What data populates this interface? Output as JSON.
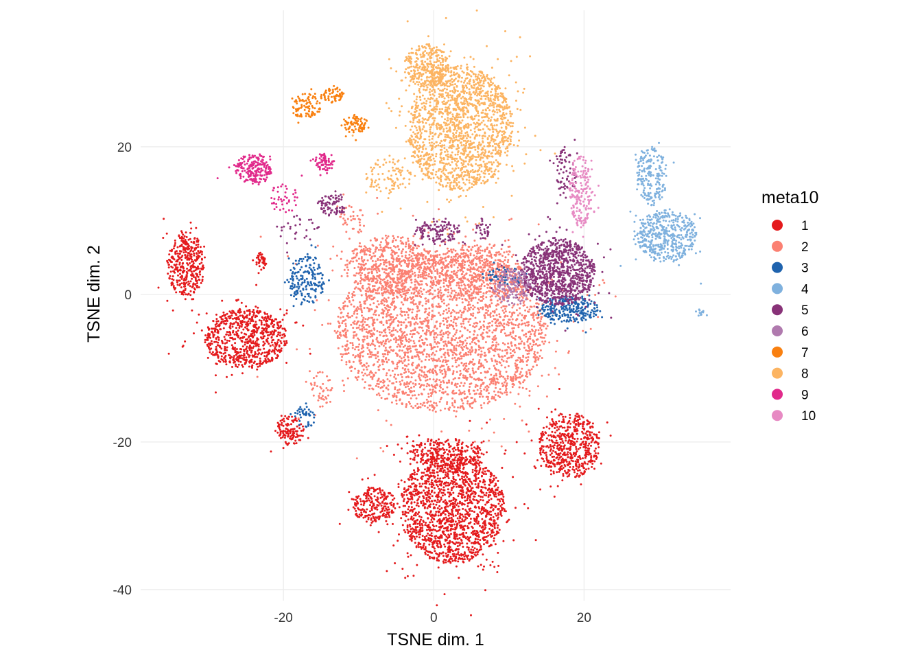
{
  "chart_data": {
    "type": "scatter",
    "title": "",
    "xlabel": "TSNE dim. 1",
    "ylabel": "TSNE dim. 2",
    "xlim": [
      -39,
      39.5
    ],
    "ylim": [
      -41.5,
      38.5
    ],
    "xticks": [
      -20,
      0,
      20
    ],
    "xtick_labels": [
      "-20",
      "0",
      "20"
    ],
    "yticks": [
      -40,
      -20,
      0,
      20
    ],
    "ytick_labels": [
      "-40",
      "-20",
      "0",
      "20"
    ],
    "grid": true,
    "legend": {
      "title": "meta10",
      "position": "right"
    },
    "series": [
      {
        "name": "1",
        "color": "#E41A1C",
        "clusters": [
          {
            "cx": 2.5,
            "cy": -29,
            "rx": 7,
            "ry": 7.5,
            "n": 1600
          },
          {
            "cx": 1.5,
            "cy": -21.5,
            "rx": 5,
            "ry": 2,
            "n": 250
          },
          {
            "cx": 18,
            "cy": -20.5,
            "rx": 4,
            "ry": 4.5,
            "n": 550
          },
          {
            "cx": -8,
            "cy": -28.5,
            "rx": 2.8,
            "ry": 2.5,
            "n": 220
          },
          {
            "cx": -25,
            "cy": -6,
            "rx": 5.5,
            "ry": 4,
            "n": 750
          },
          {
            "cx": -33,
            "cy": 4,
            "rx": 2.5,
            "ry": 4.5,
            "n": 380
          },
          {
            "cx": -19,
            "cy": -18.5,
            "rx": 1.8,
            "ry": 2,
            "n": 120
          },
          {
            "cx": -23,
            "cy": 4.5,
            "rx": 0.8,
            "ry": 1.2,
            "n": 40
          }
        ]
      },
      {
        "name": "2",
        "color": "#FB8072",
        "clusters": [
          {
            "cx": 1,
            "cy": -5,
            "rx": 14,
            "ry": 11,
            "n": 3000
          },
          {
            "cx": -6,
            "cy": 4,
            "rx": 6,
            "ry": 4,
            "n": 500
          },
          {
            "cx": 6,
            "cy": 3,
            "rx": 6,
            "ry": 4,
            "n": 400
          },
          {
            "cx": -15,
            "cy": -13,
            "rx": 1.5,
            "ry": 2.5,
            "n": 40
          },
          {
            "cx": -11,
            "cy": 10,
            "rx": 2,
            "ry": 2,
            "n": 40
          }
        ]
      },
      {
        "name": "3",
        "color": "#1F63AE",
        "clusters": [
          {
            "cx": -17,
            "cy": 2,
            "rx": 2.5,
            "ry": 3.5,
            "n": 180
          },
          {
            "cx": 18,
            "cy": -2,
            "rx": 4,
            "ry": 1.8,
            "n": 260
          },
          {
            "cx": -17,
            "cy": -16.5,
            "rx": 1.5,
            "ry": 1.5,
            "n": 45
          },
          {
            "cx": 10,
            "cy": 2.5,
            "rx": 3,
            "ry": 1.2,
            "n": 60
          }
        ]
      },
      {
        "name": "4",
        "color": "#7FB1DE",
        "clusters": [
          {
            "cx": 31,
            "cy": 8,
            "rx": 4,
            "ry": 3.5,
            "n": 450
          },
          {
            "cx": 29,
            "cy": 16,
            "rx": 2,
            "ry": 4,
            "n": 200
          },
          {
            "cx": 35.5,
            "cy": -2.5,
            "rx": 0.5,
            "ry": 0.5,
            "n": 12
          }
        ]
      },
      {
        "name": "5",
        "color": "#883278",
        "clusters": [
          {
            "cx": 16.5,
            "cy": 3,
            "rx": 5,
            "ry": 4.5,
            "n": 950
          },
          {
            "cx": 0.5,
            "cy": 8.5,
            "rx": 3,
            "ry": 1.5,
            "n": 130
          },
          {
            "cx": -13.5,
            "cy": 12,
            "rx": 2,
            "ry": 1.5,
            "n": 80
          },
          {
            "cx": 17.5,
            "cy": 16.5,
            "rx": 1.5,
            "ry": 3.5,
            "n": 70
          },
          {
            "cx": -18,
            "cy": 9,
            "rx": 3,
            "ry": 2,
            "n": 30
          },
          {
            "cx": 6.5,
            "cy": 9,
            "rx": 1,
            "ry": 1.5,
            "n": 30
          }
        ]
      },
      {
        "name": "6",
        "color": "#B07AAE",
        "clusters": [
          {
            "cx": 10.5,
            "cy": 1,
            "rx": 2.5,
            "ry": 2.5,
            "n": 160
          }
        ]
      },
      {
        "name": "7",
        "color": "#F98010",
        "clusters": [
          {
            "cx": -17,
            "cy": 25.5,
            "rx": 2,
            "ry": 1.7,
            "n": 90
          },
          {
            "cx": -13.5,
            "cy": 27,
            "rx": 1.5,
            "ry": 1,
            "n": 60
          },
          {
            "cx": -10.5,
            "cy": 23,
            "rx": 1.8,
            "ry": 1.2,
            "n": 80
          }
        ]
      },
      {
        "name": "8",
        "color": "#FCB462",
        "clusters": [
          {
            "cx": 3.5,
            "cy": 22.5,
            "rx": 7,
            "ry": 8.5,
            "n": 1700
          },
          {
            "cx": -1,
            "cy": 31,
            "rx": 3,
            "ry": 3,
            "n": 300
          },
          {
            "cx": -6,
            "cy": 16,
            "rx": 3,
            "ry": 2.5,
            "n": 90
          }
        ]
      },
      {
        "name": "9",
        "color": "#E12A8B",
        "clusters": [
          {
            "cx": -24,
            "cy": 17,
            "rx": 2.5,
            "ry": 2,
            "n": 220
          },
          {
            "cx": -14.5,
            "cy": 18,
            "rx": 1.3,
            "ry": 1.3,
            "n": 70
          },
          {
            "cx": -20,
            "cy": 13,
            "rx": 2,
            "ry": 2,
            "n": 40
          }
        ]
      },
      {
        "name": "10",
        "color": "#E78AC3",
        "clusters": [
          {
            "cx": 19.5,
            "cy": 14,
            "rx": 1.5,
            "ry": 5,
            "n": 200
          }
        ]
      }
    ]
  }
}
